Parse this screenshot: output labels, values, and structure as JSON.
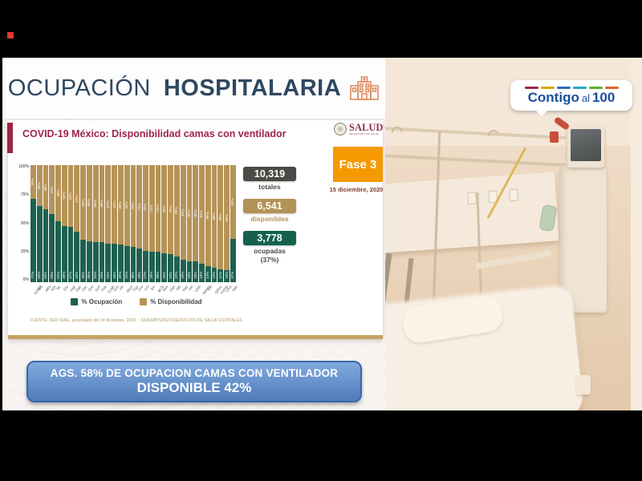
{
  "header": {
    "title_light": "OCUPACIÓN",
    "title_bold": "HOSPITALARIA"
  },
  "card": {
    "subtitle": "COVID-19 México: Disponibilidad camas con ventilador",
    "salud": {
      "name": "SALUD",
      "sub": "SECRETARÍA DE SALUD"
    },
    "fase": "Fase 3",
    "date": "15 diciembre, 2020",
    "source": "FUENTE: RED IRAG, acumulado del 14 diciembre, 2020.  -  SSA/SPPS/DGTI/SERVICIOS DE SALUD ESTATALES"
  },
  "stats": [
    {
      "value": "10,319",
      "label": "totales",
      "box_color": "#4b4a46",
      "label_color": "#4b4a46"
    },
    {
      "value": "6,541",
      "label": "disponibles",
      "box_color": "#b29256",
      "label_color": "#b29256"
    },
    {
      "value": "3,778",
      "label": "ocupadas",
      "sublabel": "(37%)",
      "box_color": "#15614e",
      "label_color": "#4b4a46"
    }
  ],
  "chart_data": {
    "type": "bar",
    "stacked": true,
    "title": "COVID-19 México: Disponibilidad camas con ventilador",
    "categories": [
      "CDMX",
      "BC",
      "Méx",
      "Ags",
      "NL",
      "Gto",
      "Hgo",
      "Dgo",
      "Zac",
      "Qro",
      "SLP",
      "Pue",
      "Coah",
      "Son",
      "Jal",
      "Mich",
      "Tlax",
      "Gro",
      "Col",
      "Sin",
      "BCS",
      "Mor",
      "Oax",
      "Tab",
      "Nay",
      "Ver",
      "Chih",
      "Tamps",
      "Yuc",
      "QRoo",
      "Camp",
      "Chis",
      "Nac"
    ],
    "series": [
      {
        "name": "% Ocupación",
        "color": "#1d6150",
        "values": [
          71,
          65,
          62,
          58,
          52,
          48,
          47,
          43,
          36,
          35,
          34,
          34,
          33,
          33,
          32,
          31,
          30,
          29,
          27,
          26,
          26,
          25,
          24,
          22,
          19,
          18,
          18,
          16,
          14,
          12,
          11,
          10,
          37
        ]
      },
      {
        "name": "% Disponibilidad",
        "color": "#b69357",
        "values": [
          29,
          35,
          38,
          42,
          48,
          52,
          53,
          57,
          64,
          65,
          66,
          66,
          67,
          67,
          68,
          69,
          70,
          71,
          73,
          74,
          74,
          75,
          76,
          78,
          81,
          82,
          82,
          84,
          86,
          88,
          89,
          90,
          63
        ]
      }
    ],
    "y_ticks": [
      "100%",
      "75%",
      "50%",
      "25%",
      "0%"
    ],
    "ylim": [
      0,
      100
    ],
    "legend_position": "bottom",
    "grid": false
  },
  "banner": {
    "line1": "AGS. 58% DE OCUPACION CAMAS CON VENTILADOR",
    "line2": "DISPONIBLE 42%"
  },
  "contigo": {
    "word1": "Contigo",
    "word2": "al",
    "word3": "100",
    "dash_colors": [
      "#9d2449",
      "#d4a900",
      "#2a6fb8",
      "#2aa7c9",
      "#5fae2f",
      "#d9662b"
    ]
  },
  "colors": {
    "accent_maroon": "#9d2449",
    "fase_orange": "#f49a00",
    "occupied_green": "#1d6150",
    "available_tan": "#b69357",
    "banner_blue": "#5d89c6",
    "title_slate": "#2f4760"
  }
}
